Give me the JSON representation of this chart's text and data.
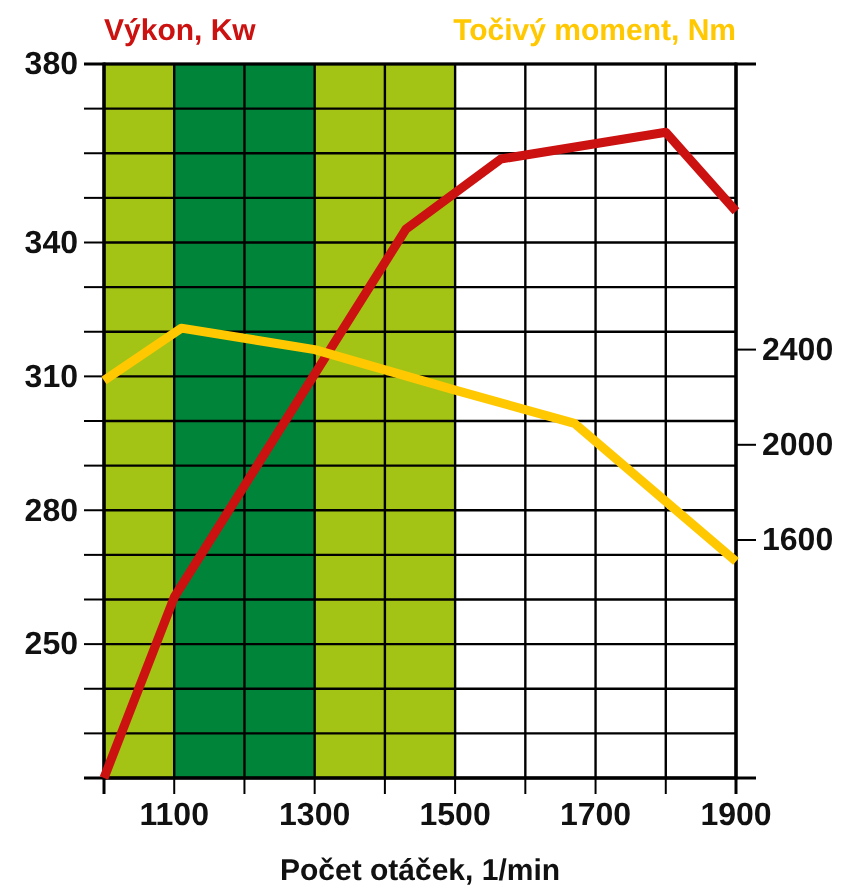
{
  "chart_data": {
    "type": "line",
    "ylabel": "Výkon, Kw",
    "y2label": "Točivý moment, Nm",
    "xlabel": "Počet otáček, 1/min",
    "xlim": [
      1000,
      1900
    ],
    "xticks": [
      {
        "value": 1000,
        "label": null
      },
      1100,
      {
        "value": 1200,
        "label": null
      },
      1300,
      {
        "value": 1400,
        "label": null
      },
      1500,
      {
        "value": 1600,
        "label": null
      },
      1700,
      {
        "value": 1800,
        "label": null
      },
      1900
    ],
    "ylim": [
      220,
      380
    ],
    "yticks": [
      {
        "value": 220,
        "label": null
      },
      {
        "value": 230,
        "label": null
      },
      {
        "value": 240,
        "label": null
      },
      250,
      {
        "value": 260,
        "label": null
      },
      {
        "value": 270,
        "label": null
      },
      280,
      {
        "value": 290,
        "label": null
      },
      {
        "value": 300,
        "label": null
      },
      310,
      {
        "value": 320,
        "label": null
      },
      {
        "value": 330,
        "label": null
      },
      340,
      {
        "value": 350,
        "label": null
      },
      {
        "value": 360,
        "label": null
      },
      {
        "value": 370,
        "label": null
      },
      380
    ],
    "y2lim": [
      600,
      3600
    ],
    "y2ticks": [
      1600,
      2000,
      2400
    ],
    "grid": true,
    "bands": [
      {
        "axis": "x",
        "from": 1000,
        "to": 1100,
        "color": "#a3c414"
      },
      {
        "axis": "x",
        "from": 1100,
        "to": 1300,
        "color": "#00843a"
      },
      {
        "axis": "x",
        "from": 1300,
        "to": 1500,
        "color": "#a3c414"
      }
    ],
    "series": [
      {
        "color": "#cc1111",
        "x": [
          1000,
          1100,
          1430,
          1565,
          1800,
          1900
        ],
        "values": [
          220,
          260.5,
          343,
          358.7,
          364.7,
          347
        ]
      },
      {
        "color": "#ffc800",
        "axis": "y2",
        "x": [
          1000,
          1110,
          1300,
          1500,
          1670,
          1900
        ],
        "values": [
          2270,
          2490,
          2400,
          2230,
          2090,
          1510
        ]
      }
    ]
  }
}
